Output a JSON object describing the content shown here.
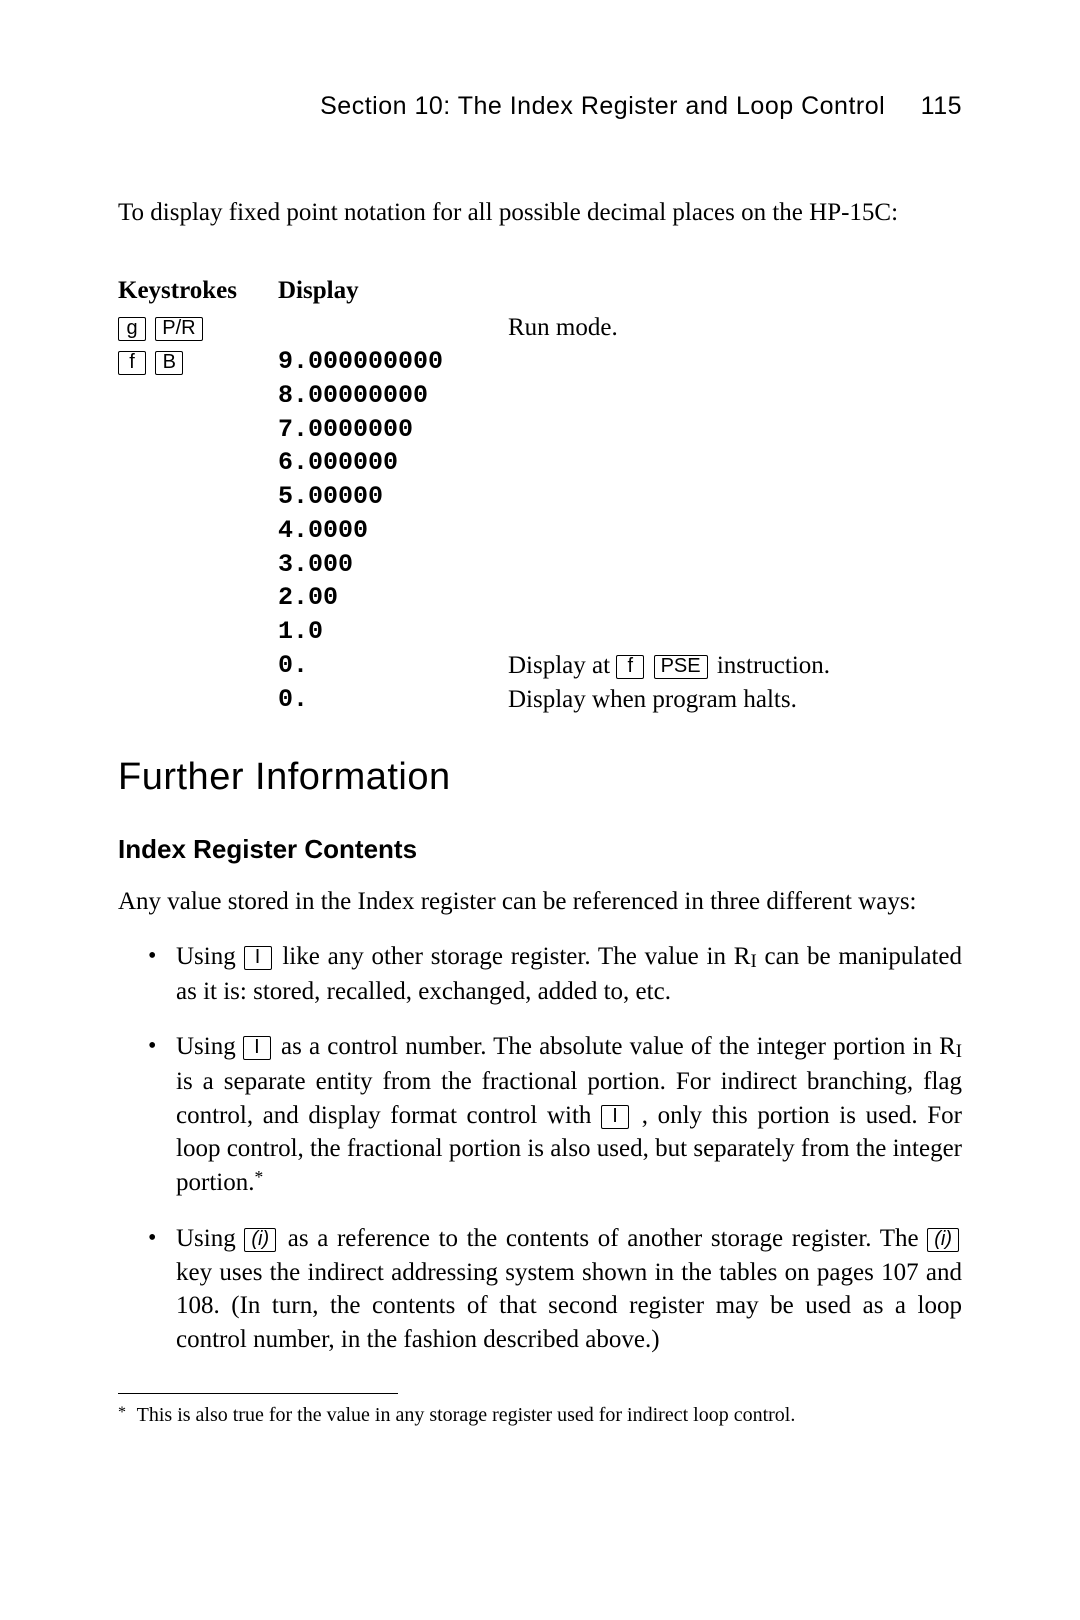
{
  "header": {
    "title": "Section 10: The Index Register and Loop Control",
    "pageno": "115"
  },
  "intro": "To display fixed point notation for all possible decimal places on the HP-15C:",
  "table": {
    "head_keystrokes": "Keystrokes",
    "head_display": "Display",
    "rows": [
      {
        "k1": "g",
        "k2": "P/R",
        "disp": "",
        "desc_plain": "Run mode."
      },
      {
        "k1": "f",
        "k2": "B",
        "disp": "9.000000000",
        "desc_plain": ""
      },
      {
        "disp": "8.00000000"
      },
      {
        "disp": "7.0000000"
      },
      {
        "disp": "6.000000"
      },
      {
        "disp": "5.00000"
      },
      {
        "disp": "4.0000"
      },
      {
        "disp": "3.000"
      },
      {
        "disp": "2.00"
      },
      {
        "disp": "1.0"
      },
      {
        "disp": "0.",
        "desc_pre": "Display at ",
        "desc_k1": "f",
        "desc_k2": "PSE",
        "desc_post": "instruction."
      },
      {
        "disp": "0.",
        "desc_plain": "Display when program halts."
      }
    ]
  },
  "heading": "Further Information",
  "subheading": "Index Register Contents",
  "lead": "Any value stored in the Index register can be referenced in three different ways:",
  "bullets": {
    "b1_pre": "Using ",
    "b1_key": "I",
    "b1_mid": " like any other storage register. The value in R",
    "b1_sub": "I",
    "b1_post": " can be manipulated as it is: stored, recalled, exchanged, added to, etc.",
    "b2_pre": "Using ",
    "b2_key": "I",
    "b2_mid": " as a control number. The absolute value of the integer portion in R",
    "b2_sub": "I",
    "b2_mid2": " is a separate entity from the fractional portion. For indirect branching, flag control, and display format control with ",
    "b2_key2": "I",
    "b2_post": ", only this portion is used. For loop control, the fractional portion is also used, but separately from the integer portion.",
    "b3_pre": "Using ",
    "b3_key": "(i)",
    "b3_mid": " as a reference to the contents of another storage register. The ",
    "b3_key2": "(i)",
    "b3_post": " key uses the indirect addressing system shown in the tables on pages 107 and 108. (In turn, the contents of that second register may be used as a loop control number, in the fashion described above.)"
  },
  "footnote": "This is also true for the value in any storage register used for indirect loop control."
}
